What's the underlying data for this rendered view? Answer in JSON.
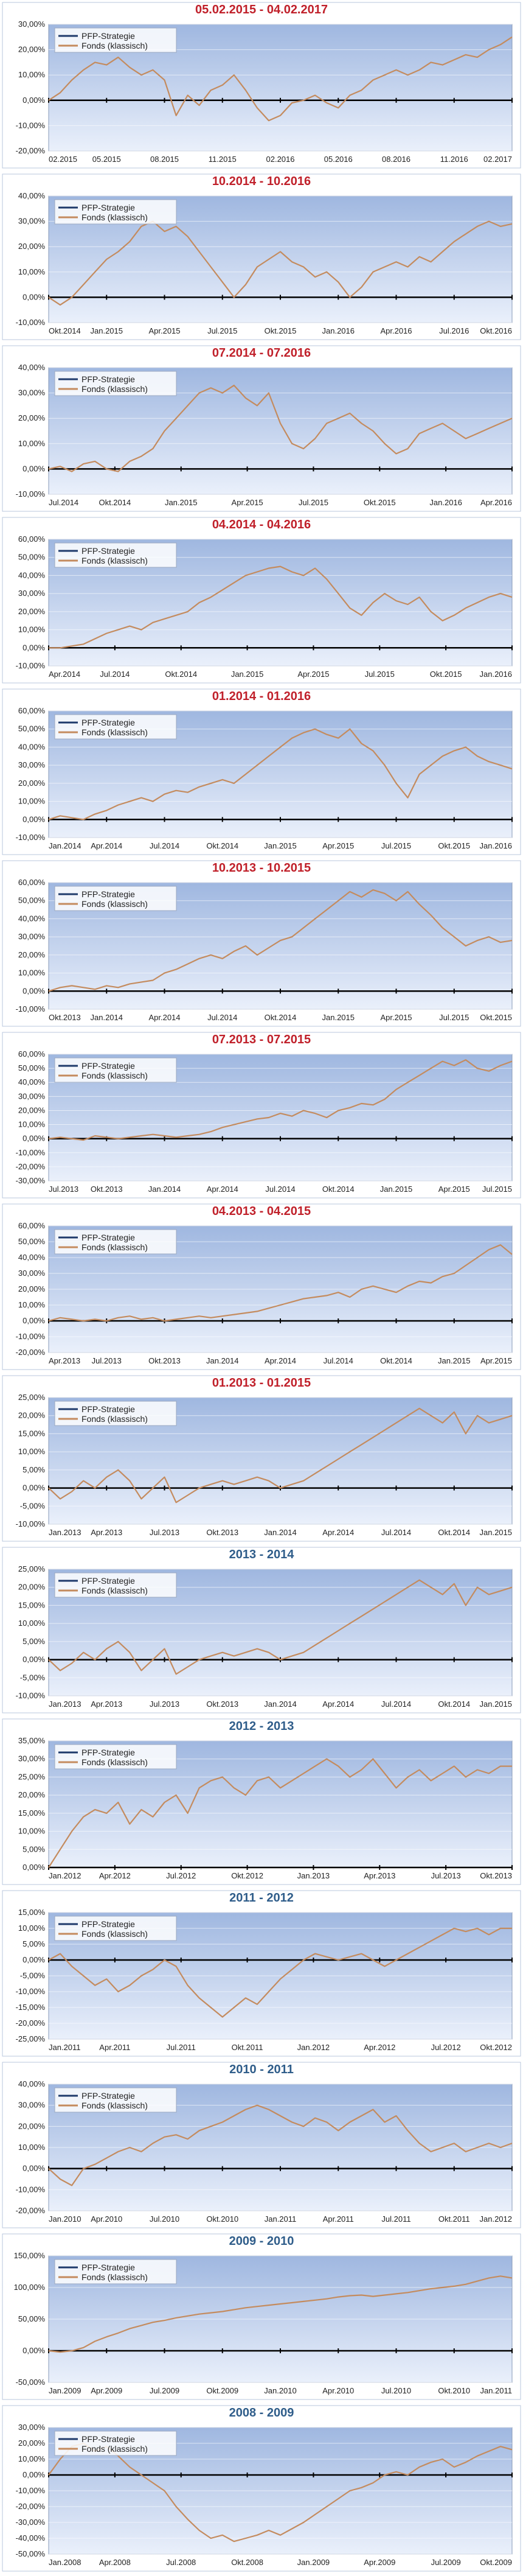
{
  "colors": {
    "plot_bg_top": "#9fb7e0",
    "plot_bg_bottom": "#eaf0fb",
    "title_red": "#c0202a",
    "title_blue": "#2f5d8a",
    "series_strategy": "#1f3a6b",
    "series_fonds": "#c48b5e",
    "frame": "#b9c7de"
  },
  "legend": [
    "PFP-Strategie",
    "Fonds (klassisch)"
  ],
  "chart_data": [
    {
      "type": "line",
      "title": "05.02.2015 - 04.02.2017",
      "title_color": "red",
      "yticks": [
        "-20,00%",
        "-10,00%",
        "0,00%",
        "10,00%",
        "20,00%",
        "30,00%"
      ],
      "ylim": [
        -20,
        30
      ],
      "xticks": [
        "02.2015",
        "05.2015",
        "08.2015",
        "11.2015",
        "02.2016",
        "05.2016",
        "08.2016",
        "11.2016",
        "02.2017"
      ],
      "series": [
        {
          "name": "Fonds (klassisch)",
          "values": [
            0,
            3,
            8,
            12,
            15,
            14,
            17,
            13,
            10,
            12,
            8,
            -6,
            2,
            -2,
            4,
            6,
            10,
            4,
            -3,
            -8,
            -6,
            -1,
            0,
            2,
            -1,
            -3,
            2,
            4,
            8,
            10,
            12,
            10,
            12,
            15,
            14,
            16,
            18,
            17,
            20,
            22,
            25
          ]
        }
      ]
    },
    {
      "type": "line",
      "title": "10.2014 - 10.2016",
      "title_color": "red",
      "yticks": [
        "-10,00%",
        "0,00%",
        "10,00%",
        "20,00%",
        "30,00%",
        "40,00%"
      ],
      "ylim": [
        -10,
        40
      ],
      "xticks": [
        "Okt.2014",
        "Jan.2015",
        "Apr.2015",
        "Jul.2015",
        "Okt.2015",
        "Jan.2016",
        "Apr.2016",
        "Jul.2016",
        "Okt.2016"
      ],
      "series": [
        {
          "name": "Fonds (klassisch)",
          "values": [
            0,
            -3,
            0,
            5,
            10,
            15,
            18,
            22,
            28,
            30,
            26,
            28,
            24,
            18,
            12,
            6,
            0,
            5,
            12,
            15,
            18,
            14,
            12,
            8,
            10,
            6,
            0,
            4,
            10,
            12,
            14,
            12,
            16,
            14,
            18,
            22,
            25,
            28,
            30,
            28,
            29
          ]
        }
      ]
    },
    {
      "type": "line",
      "title": "07.2014 - 07.2016",
      "title_color": "red",
      "yticks": [
        "-10,00%",
        "0,00%",
        "10,00%",
        "20,00%",
        "30,00%",
        "40,00%"
      ],
      "ylim": [
        -10,
        40
      ],
      "xticks": [
        "Jul.2014",
        "Okt.2014",
        "Jan.2015",
        "Apr.2015",
        "Jul.2015",
        "Okt.2015",
        "Jan.2016",
        "Apr.2016"
      ],
      "series": [
        {
          "name": "Fonds (klassisch)",
          "values": [
            0,
            1,
            -1,
            2,
            3,
            0,
            -1,
            3,
            5,
            8,
            15,
            20,
            25,
            30,
            32,
            30,
            33,
            28,
            25,
            30,
            18,
            10,
            8,
            12,
            18,
            20,
            22,
            18,
            15,
            10,
            6,
            8,
            14,
            16,
            18,
            15,
            12,
            14,
            16,
            18,
            20
          ]
        }
      ]
    },
    {
      "type": "line",
      "title": "04.2014 - 04.2016",
      "title_color": "red",
      "yticks": [
        "-10,00%",
        "0,00%",
        "10,00%",
        "20,00%",
        "30,00%",
        "40,00%",
        "50,00%",
        "60,00%"
      ],
      "ylim": [
        -10,
        60
      ],
      "xticks": [
        "Apr.2014",
        "Jul.2014",
        "Okt.2014",
        "Jan.2015",
        "Apr.2015",
        "Jul.2015",
        "Okt.2015",
        "Jan.2016"
      ],
      "series": [
        {
          "name": "Fonds (klassisch)",
          "values": [
            0,
            0,
            1,
            2,
            5,
            8,
            10,
            12,
            10,
            14,
            16,
            18,
            20,
            25,
            28,
            32,
            36,
            40,
            42,
            44,
            45,
            42,
            40,
            44,
            38,
            30,
            22,
            18,
            25,
            30,
            26,
            24,
            28,
            20,
            15,
            18,
            22,
            25,
            28,
            30,
            28
          ]
        }
      ]
    },
    {
      "type": "line",
      "title": "01.2014 - 01.2016",
      "title_color": "red",
      "yticks": [
        "-10,00%",
        "0,00%",
        "10,00%",
        "20,00%",
        "30,00%",
        "40,00%",
        "50,00%",
        "60,00%"
      ],
      "ylim": [
        -10,
        60
      ],
      "xticks": [
        "Jan.2014",
        "Apr.2014",
        "Jul.2014",
        "Okt.2014",
        "Jan.2015",
        "Apr.2015",
        "Jul.2015",
        "Okt.2015",
        "Jan.2016"
      ],
      "series": [
        {
          "name": "Fonds (klassisch)",
          "values": [
            0,
            2,
            1,
            0,
            3,
            5,
            8,
            10,
            12,
            10,
            14,
            16,
            15,
            18,
            20,
            22,
            20,
            25,
            30,
            35,
            40,
            45,
            48,
            50,
            47,
            45,
            50,
            42,
            38,
            30,
            20,
            12,
            25,
            30,
            35,
            38,
            40,
            35,
            32,
            30,
            28
          ]
        }
      ]
    },
    {
      "type": "line",
      "title": "10.2013 - 10.2015",
      "title_color": "red",
      "yticks": [
        "-10,00%",
        "0,00%",
        "10,00%",
        "20,00%",
        "30,00%",
        "40,00%",
        "50,00%",
        "60,00%"
      ],
      "ylim": [
        -10,
        60
      ],
      "xticks": [
        "Okt.2013",
        "Jan.2014",
        "Apr.2014",
        "Jul.2014",
        "Okt.2014",
        "Jan.2015",
        "Apr.2015",
        "Jul.2015",
        "Okt.2015"
      ],
      "series": [
        {
          "name": "Fonds (klassisch)",
          "values": [
            0,
            2,
            3,
            2,
            1,
            3,
            2,
            4,
            5,
            6,
            10,
            12,
            15,
            18,
            20,
            18,
            22,
            25,
            20,
            24,
            28,
            30,
            35,
            40,
            45,
            50,
            55,
            52,
            56,
            54,
            50,
            55,
            48,
            42,
            35,
            30,
            25,
            28,
            30,
            27,
            28
          ]
        }
      ]
    },
    {
      "type": "line",
      "title": "07.2013 - 07.2015",
      "title_color": "red",
      "yticks": [
        "-30,00%",
        "-20,00%",
        "-10,00%",
        "0,00%",
        "10,00%",
        "20,00%",
        "30,00%",
        "40,00%",
        "50,00%",
        "60,00%"
      ],
      "ylim": [
        -30,
        60
      ],
      "xticks": [
        "Jul.2013",
        "Okt.2013",
        "Jan.2014",
        "Apr.2014",
        "Jul.2014",
        "Okt.2014",
        "Jan.2015",
        "Apr.2015",
        "Jul.2015"
      ],
      "series": [
        {
          "name": "Fonds (klassisch)",
          "values": [
            0,
            1,
            0,
            -1,
            2,
            1,
            0,
            1,
            2,
            3,
            2,
            1,
            2,
            3,
            5,
            8,
            10,
            12,
            14,
            15,
            18,
            16,
            20,
            18,
            15,
            20,
            22,
            25,
            24,
            28,
            35,
            40,
            45,
            50,
            55,
            52,
            56,
            50,
            48,
            52,
            55
          ]
        }
      ]
    },
    {
      "type": "line",
      "title": "04.2013 - 04.2015",
      "title_color": "red",
      "yticks": [
        "-20,00%",
        "-10,00%",
        "0,00%",
        "10,00%",
        "20,00%",
        "30,00%",
        "40,00%",
        "50,00%",
        "60,00%"
      ],
      "ylim": [
        -20,
        60
      ],
      "xticks": [
        "Apr.2013",
        "Jul.2013",
        "Okt.2013",
        "Jan.2014",
        "Apr.2014",
        "Jul.2014",
        "Okt.2014",
        "Jan.2015",
        "Apr.2015"
      ],
      "series": [
        {
          "name": "Fonds (klassisch)",
          "values": [
            0,
            2,
            1,
            0,
            1,
            0,
            2,
            3,
            1,
            2,
            0,
            1,
            2,
            3,
            2,
            3,
            4,
            5,
            6,
            8,
            10,
            12,
            14,
            15,
            16,
            18,
            15,
            20,
            22,
            20,
            18,
            22,
            25,
            24,
            28,
            30,
            35,
            40,
            45,
            48,
            42
          ]
        }
      ]
    },
    {
      "type": "line",
      "title": "01.2013 - 01.2015",
      "title_color": "red",
      "yticks": [
        "-10,00%",
        "-5,00%",
        "0,00%",
        "5,00%",
        "10,00%",
        "15,00%",
        "20,00%",
        "25,00%"
      ],
      "ylim": [
        -10,
        25
      ],
      "xticks": [
        "Jan.2013",
        "Apr.2013",
        "Jul.2013",
        "Okt.2013",
        "Jan.2014",
        "Apr.2014",
        "Jul.2014",
        "Okt.2014",
        "Jan.2015"
      ],
      "series": [
        {
          "name": "Fonds (klassisch)",
          "values": [
            0,
            -3,
            -1,
            2,
            0,
            3,
            5,
            2,
            -3,
            0,
            3,
            -4,
            -2,
            0,
            1,
            2,
            1,
            2,
            3,
            2,
            0,
            1,
            2,
            4,
            6,
            8,
            10,
            12,
            14,
            16,
            18,
            20,
            22,
            20,
            18,
            21,
            15,
            20,
            18,
            19,
            20
          ]
        }
      ]
    },
    {
      "type": "line",
      "title": "2013 - 2014",
      "title_color": "blue",
      "yticks": [
        "-10,00%",
        "-5,00%",
        "0,00%",
        "5,00%",
        "10,00%",
        "15,00%",
        "20,00%",
        "25,00%"
      ],
      "ylim": [
        -10,
        25
      ],
      "xticks": [
        "Jan.2013",
        "Apr.2013",
        "Jul.2013",
        "Okt.2013",
        "Jan.2014",
        "Apr.2014",
        "Jul.2014",
        "Okt.2014",
        "Jan.2015"
      ],
      "series": [
        {
          "name": "Fonds (klassisch)",
          "values": [
            0,
            -3,
            -1,
            2,
            0,
            3,
            5,
            2,
            -3,
            0,
            3,
            -4,
            -2,
            0,
            1,
            2,
            1,
            2,
            3,
            2,
            0,
            1,
            2,
            4,
            6,
            8,
            10,
            12,
            14,
            16,
            18,
            20,
            22,
            20,
            18,
            21,
            15,
            20,
            18,
            19,
            20
          ]
        }
      ]
    },
    {
      "type": "line",
      "title": "2012 - 2013",
      "title_color": "blue",
      "yticks": [
        "0,00%",
        "5,00%",
        "10,00%",
        "15,00%",
        "20,00%",
        "25,00%",
        "30,00%",
        "35,00%"
      ],
      "ylim": [
        0,
        35
      ],
      "xticks": [
        "Jan.2012",
        "Apr.2012",
        "Jul.2012",
        "Okt.2012",
        "Jan.2013",
        "Apr.2013",
        "Jul.2013",
        "Okt.2013"
      ],
      "series": [
        {
          "name": "Fonds (klassisch)",
          "values": [
            0,
            5,
            10,
            14,
            16,
            15,
            18,
            12,
            16,
            14,
            18,
            20,
            15,
            22,
            24,
            25,
            22,
            20,
            24,
            25,
            22,
            24,
            26,
            28,
            30,
            28,
            25,
            27,
            30,
            26,
            22,
            25,
            27,
            24,
            26,
            28,
            25,
            27,
            26,
            28,
            28
          ]
        }
      ]
    },
    {
      "type": "line",
      "title": "2011 - 2012",
      "title_color": "blue",
      "yticks": [
        "-25,00%",
        "-20,00%",
        "-15,00%",
        "-10,00%",
        "-5,00%",
        "0,00%",
        "5,00%",
        "10,00%",
        "15,00%"
      ],
      "ylim": [
        -25,
        15
      ],
      "xticks": [
        "Jan.2011",
        "Apr.2011",
        "Jul.2011",
        "Okt.2011",
        "Jan.2012",
        "Apr.2012",
        "Jul.2012",
        "Okt.2012"
      ],
      "series": [
        {
          "name": "Fonds (klassisch)",
          "values": [
            0,
            2,
            -2,
            -5,
            -8,
            -6,
            -10,
            -8,
            -5,
            -3,
            0,
            -2,
            -8,
            -12,
            -15,
            -18,
            -15,
            -12,
            -14,
            -10,
            -6,
            -3,
            0,
            2,
            1,
            0,
            1,
            2,
            0,
            -2,
            0,
            2,
            4,
            6,
            8,
            10,
            9,
            10,
            8,
            10,
            10
          ]
        }
      ]
    },
    {
      "type": "line",
      "title": "2010 - 2011",
      "title_color": "blue",
      "yticks": [
        "-20,00%",
        "-10,00%",
        "0,00%",
        "10,00%",
        "20,00%",
        "30,00%",
        "40,00%"
      ],
      "ylim": [
        -20,
        40
      ],
      "xticks": [
        "Jan.2010",
        "Apr.2010",
        "Jul.2010",
        "Okt.2010",
        "Jan.2011",
        "Apr.2011",
        "Jul.2011",
        "Okt.2011",
        "Jan.2012"
      ],
      "series": [
        {
          "name": "Fonds (klassisch)",
          "values": [
            0,
            -5,
            -8,
            0,
            2,
            5,
            8,
            10,
            8,
            12,
            15,
            16,
            14,
            18,
            20,
            22,
            25,
            28,
            30,
            28,
            25,
            22,
            20,
            24,
            22,
            18,
            22,
            25,
            28,
            22,
            25,
            18,
            12,
            8,
            10,
            12,
            8,
            10,
            12,
            10,
            12
          ]
        }
      ]
    },
    {
      "type": "line",
      "title": "2009 - 2010",
      "title_color": "blue",
      "yticks": [
        "-50,00%",
        "0,00%",
        "50,00%",
        "100,00%",
        "150,00%"
      ],
      "ylim": [
        -50,
        150
      ],
      "xticks": [
        "Jan.2009",
        "Apr.2009",
        "Jul.2009",
        "Okt.2009",
        "Jan.2010",
        "Apr.2010",
        "Jul.2010",
        "Okt.2010",
        "Jan.2011"
      ],
      "series": [
        {
          "name": "Fonds (klassisch)",
          "values": [
            0,
            -2,
            0,
            5,
            15,
            22,
            28,
            35,
            40,
            45,
            48,
            52,
            55,
            58,
            60,
            62,
            65,
            68,
            70,
            72,
            74,
            76,
            78,
            80,
            82,
            85,
            87,
            88,
            86,
            88,
            90,
            92,
            95,
            98,
            100,
            102,
            105,
            110,
            115,
            118,
            115
          ]
        }
      ]
    },
    {
      "type": "line",
      "title": "2008 - 2009",
      "title_color": "blue",
      "yticks": [
        "-50,00%",
        "-40,00%",
        "-30,00%",
        "-20,00%",
        "-10,00%",
        "0,00%",
        "10,00%",
        "20,00%",
        "30,00%"
      ],
      "ylim": [
        -50,
        30
      ],
      "xticks": [
        "Jan.2008",
        "Apr.2008",
        "Jul.2008",
        "Okt.2008",
        "Jan.2009",
        "Apr.2009",
        "Jul.2009",
        "Okt.2009"
      ],
      "series": [
        {
          "name": "Fonds (klassisch)",
          "values": [
            0,
            10,
            18,
            20,
            15,
            18,
            12,
            5,
            0,
            -5,
            -10,
            -20,
            -28,
            -35,
            -40,
            -38,
            -42,
            -40,
            -38,
            -35,
            -38,
            -34,
            -30,
            -25,
            -20,
            -15,
            -10,
            -8,
            -5,
            0,
            2,
            0,
            5,
            8,
            10,
            5,
            8,
            12,
            15,
            18,
            16
          ]
        }
      ]
    }
  ]
}
